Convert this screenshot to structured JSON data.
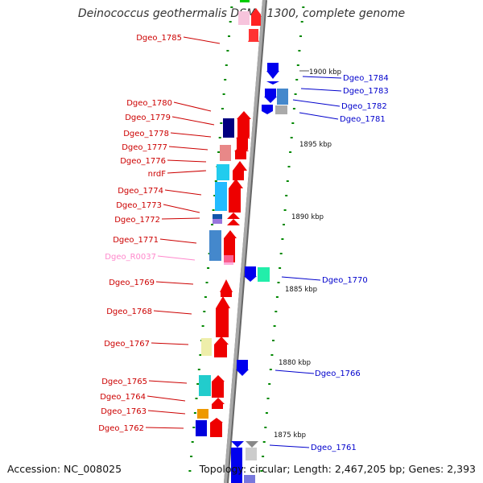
{
  "title": "Deinococcus geothermalis DSM 11300, complete genome",
  "footer": {
    "accession": "Accession: NC_008025",
    "stats": "Topology: circular; Length: 2,467,205 bp; Genes: 2,393"
  },
  "colors": {
    "forward_label": "#cc0000",
    "reverse_label": "#0000cc",
    "rrna_label": "#ff88cc",
    "axis": "#999999",
    "tick": "#008800"
  },
  "ticks": [
    "1900 kbp",
    "1895 kbp",
    "1890 kbp",
    "1885 kbp",
    "1880 kbp",
    "1875 kbp"
  ],
  "left_labels": [
    "Dgeo_1785",
    "Dgeo_1780",
    "Dgeo_1779",
    "Dgeo_1778",
    "Dgeo_1777",
    "Dgeo_1776",
    "nrdF",
    "Dgeo_1774",
    "Dgeo_1773",
    "Dgeo_1772",
    "Dgeo_1771",
    "Dgeo_R0037",
    "Dgeo_1769",
    "Dgeo_1768",
    "Dgeo_1767",
    "Dgeo_1765",
    "Dgeo_1764",
    "Dgeo_1763",
    "Dgeo_1762"
  ],
  "right_labels": [
    "Dgeo_1784",
    "Dgeo_1783",
    "Dgeo_1782",
    "Dgeo_1781",
    "Dgeo_1770",
    "Dgeo_1766",
    "Dgeo_1761"
  ]
}
